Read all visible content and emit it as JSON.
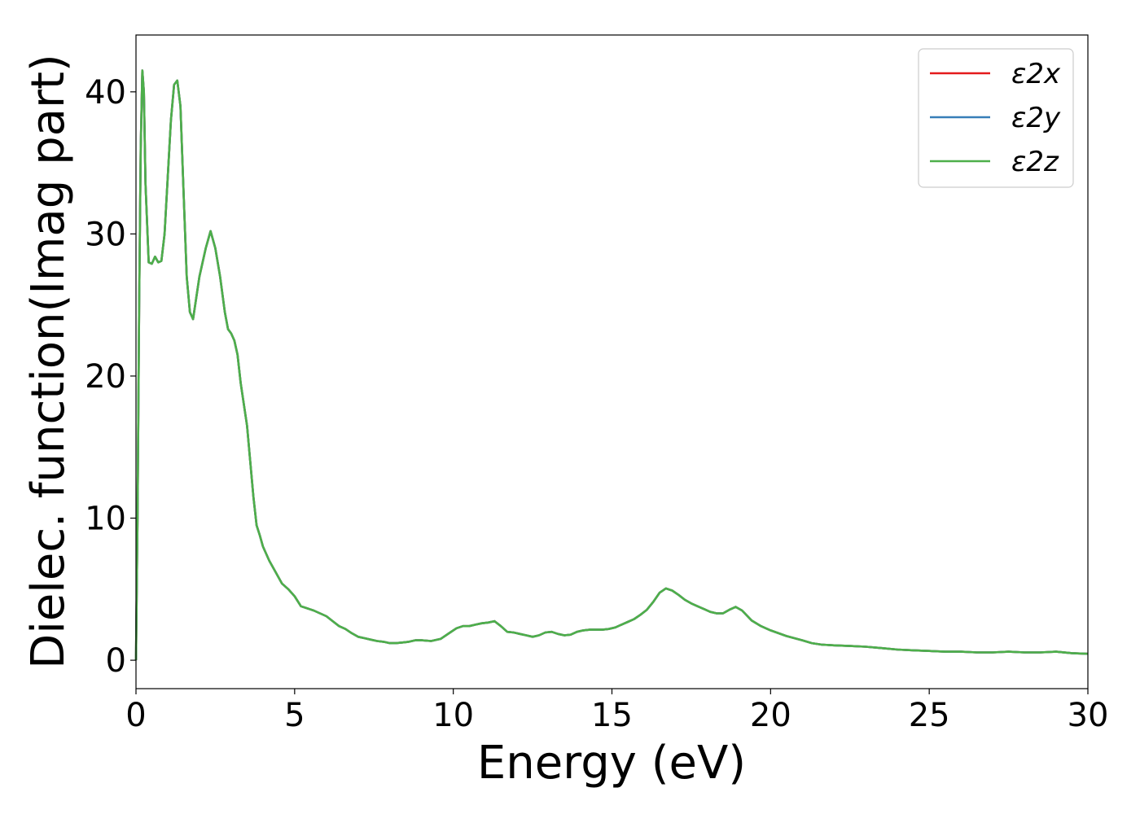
{
  "chart_data": {
    "type": "line",
    "title": "",
    "xlabel": "Energy (eV)",
    "ylabel": "Dielec. function(Imag part)",
    "xlim": [
      0,
      30
    ],
    "ylim": [
      -2,
      44
    ],
    "xticks": [
      "0",
      "5",
      "10",
      "15",
      "20",
      "25",
      "30"
    ],
    "yticks": [
      "0",
      "10",
      "20",
      "30",
      "40"
    ],
    "grid": false,
    "legend_position": "top-right",
    "x": [
      0.0,
      0.05,
      0.1,
      0.15,
      0.2,
      0.25,
      0.3,
      0.4,
      0.5,
      0.6,
      0.7,
      0.8,
      0.9,
      1.0,
      1.1,
      1.2,
      1.3,
      1.4,
      1.5,
      1.6,
      1.7,
      1.8,
      1.9,
      2.0,
      2.1,
      2.2,
      2.35,
      2.5,
      2.65,
      2.8,
      2.9,
      3.0,
      3.1,
      3.2,
      3.3,
      3.4,
      3.5,
      3.6,
      3.7,
      3.8,
      3.9,
      4.0,
      4.2,
      4.4,
      4.6,
      4.8,
      5.0,
      5.2,
      5.4,
      5.6,
      5.8,
      6.0,
      6.2,
      6.4,
      6.6,
      6.8,
      7.0,
      7.2,
      7.4,
      7.6,
      7.8,
      8.0,
      8.2,
      8.4,
      8.6,
      8.8,
      9.0,
      9.3,
      9.6,
      9.9,
      10.1,
      10.3,
      10.5,
      10.7,
      10.9,
      11.1,
      11.3,
      11.5,
      11.7,
      11.9,
      12.1,
      12.3,
      12.5,
      12.7,
      12.9,
      13.1,
      13.3,
      13.5,
      13.7,
      13.9,
      14.1,
      14.3,
      14.5,
      14.7,
      14.9,
      15.1,
      15.3,
      15.5,
      15.7,
      15.9,
      16.1,
      16.3,
      16.5,
      16.7,
      16.9,
      17.1,
      17.3,
      17.5,
      17.7,
      17.9,
      18.1,
      18.3,
      18.5,
      18.7,
      18.9,
      19.1,
      19.4,
      19.7,
      20.0,
      20.5,
      21.0,
      21.3,
      21.6,
      22.0,
      22.5,
      23.0,
      23.5,
      24.0,
      24.5,
      25.0,
      25.5,
      26.0,
      26.5,
      27.0,
      27.5,
      28.0,
      28.5,
      29.0,
      29.5,
      30.0
    ],
    "series": [
      {
        "name": "ε2x",
        "color": "#e41a1c",
        "values": [
          0.0,
          10.0,
          25.0,
          36.0,
          41.5,
          40.0,
          33.5,
          28.0,
          27.9,
          28.4,
          28.0,
          28.1,
          30.0,
          34.0,
          38.0,
          40.5,
          40.8,
          39.0,
          33.0,
          27.0,
          24.5,
          24.0,
          25.5,
          27.0,
          28.0,
          29.0,
          30.2,
          29.0,
          27.0,
          24.5,
          23.3,
          23.0,
          22.5,
          21.5,
          19.5,
          18.0,
          16.5,
          14.0,
          11.5,
          9.5,
          8.8,
          8.0,
          7.0,
          6.2,
          5.4,
          5.0,
          4.5,
          3.8,
          3.65,
          3.5,
          3.3,
          3.1,
          2.75,
          2.4,
          2.2,
          1.9,
          1.65,
          1.55,
          1.45,
          1.35,
          1.3,
          1.2,
          1.2,
          1.25,
          1.3,
          1.4,
          1.4,
          1.35,
          1.5,
          1.95,
          2.25,
          2.4,
          2.4,
          2.5,
          2.6,
          2.65,
          2.75,
          2.4,
          2.0,
          1.95,
          1.85,
          1.75,
          1.65,
          1.75,
          1.95,
          2.0,
          1.85,
          1.75,
          1.8,
          2.0,
          2.1,
          2.15,
          2.15,
          2.15,
          2.2,
          2.3,
          2.5,
          2.7,
          2.9,
          3.2,
          3.55,
          4.1,
          4.75,
          5.05,
          4.9,
          4.6,
          4.25,
          4.0,
          3.8,
          3.6,
          3.4,
          3.3,
          3.3,
          3.55,
          3.75,
          3.5,
          2.8,
          2.4,
          2.1,
          1.7,
          1.4,
          1.2,
          1.1,
          1.05,
          1.0,
          0.95,
          0.85,
          0.75,
          0.7,
          0.65,
          0.6,
          0.6,
          0.55,
          0.55,
          0.6,
          0.55,
          0.55,
          0.6,
          0.5,
          0.45
        ]
      },
      {
        "name": "ε2y",
        "color": "#377eb8",
        "values": [
          0.0,
          10.0,
          25.0,
          36.0,
          41.5,
          40.0,
          33.5,
          28.0,
          27.9,
          28.4,
          28.0,
          28.1,
          30.0,
          34.0,
          38.0,
          40.5,
          40.8,
          39.0,
          33.0,
          27.0,
          24.5,
          24.0,
          25.5,
          27.0,
          28.0,
          29.0,
          30.2,
          29.0,
          27.0,
          24.5,
          23.3,
          23.0,
          22.5,
          21.5,
          19.5,
          18.0,
          16.5,
          14.0,
          11.5,
          9.5,
          8.8,
          8.0,
          7.0,
          6.2,
          5.4,
          5.0,
          4.5,
          3.8,
          3.65,
          3.5,
          3.3,
          3.1,
          2.75,
          2.4,
          2.2,
          1.9,
          1.65,
          1.55,
          1.45,
          1.35,
          1.3,
          1.2,
          1.2,
          1.25,
          1.3,
          1.4,
          1.4,
          1.35,
          1.5,
          1.95,
          2.25,
          2.4,
          2.4,
          2.5,
          2.6,
          2.65,
          2.75,
          2.4,
          2.0,
          1.95,
          1.85,
          1.75,
          1.65,
          1.75,
          1.95,
          2.0,
          1.85,
          1.75,
          1.8,
          2.0,
          2.1,
          2.15,
          2.15,
          2.15,
          2.2,
          2.3,
          2.5,
          2.7,
          2.9,
          3.2,
          3.55,
          4.1,
          4.75,
          5.05,
          4.9,
          4.6,
          4.25,
          4.0,
          3.8,
          3.6,
          3.4,
          3.3,
          3.3,
          3.55,
          3.75,
          3.5,
          2.8,
          2.4,
          2.1,
          1.7,
          1.4,
          1.2,
          1.1,
          1.05,
          1.0,
          0.95,
          0.85,
          0.75,
          0.7,
          0.65,
          0.6,
          0.6,
          0.55,
          0.55,
          0.6,
          0.55,
          0.55,
          0.6,
          0.5,
          0.45
        ]
      },
      {
        "name": "ε2z",
        "color": "#4daf4a",
        "values": [
          0.0,
          10.0,
          25.0,
          36.0,
          41.5,
          40.0,
          33.5,
          28.0,
          27.9,
          28.4,
          28.0,
          28.1,
          30.0,
          34.0,
          38.0,
          40.5,
          40.8,
          39.0,
          33.0,
          27.0,
          24.5,
          24.0,
          25.5,
          27.0,
          28.0,
          29.0,
          30.2,
          29.0,
          27.0,
          24.5,
          23.3,
          23.0,
          22.5,
          21.5,
          19.5,
          18.0,
          16.5,
          14.0,
          11.5,
          9.5,
          8.8,
          8.0,
          7.0,
          6.2,
          5.4,
          5.0,
          4.5,
          3.8,
          3.65,
          3.5,
          3.3,
          3.1,
          2.75,
          2.4,
          2.2,
          1.9,
          1.65,
          1.55,
          1.45,
          1.35,
          1.3,
          1.2,
          1.2,
          1.25,
          1.3,
          1.4,
          1.4,
          1.35,
          1.5,
          1.95,
          2.25,
          2.4,
          2.4,
          2.5,
          2.6,
          2.65,
          2.75,
          2.4,
          2.0,
          1.95,
          1.85,
          1.75,
          1.65,
          1.75,
          1.95,
          2.0,
          1.85,
          1.75,
          1.8,
          2.0,
          2.1,
          2.15,
          2.15,
          2.15,
          2.2,
          2.3,
          2.5,
          2.7,
          2.9,
          3.2,
          3.55,
          4.1,
          4.75,
          5.05,
          4.9,
          4.6,
          4.25,
          4.0,
          3.8,
          3.6,
          3.4,
          3.3,
          3.3,
          3.55,
          3.75,
          3.5,
          2.8,
          2.4,
          2.1,
          1.7,
          1.4,
          1.2,
          1.1,
          1.05,
          1.0,
          0.95,
          0.85,
          0.75,
          0.7,
          0.65,
          0.6,
          0.6,
          0.55,
          0.55,
          0.6,
          0.55,
          0.55,
          0.6,
          0.5,
          0.45
        ]
      }
    ]
  }
}
